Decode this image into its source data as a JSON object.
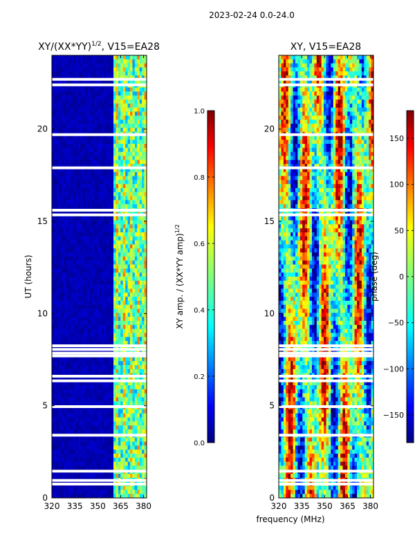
{
  "suptitle": "2023-02-24 0.0-24.0",
  "xlabel_shared": "frequency (MHz)",
  "chart_data": [
    {
      "type": "heatmap",
      "title_main": "XY/(XX*YY)",
      "title_sup": "1/2",
      "title_tail": ", V15=EA28",
      "ylabel": "UT (hours)",
      "xlim": [
        320,
        382
      ],
      "ylim": [
        0,
        24
      ],
      "xticks": [
        320,
        335,
        350,
        365,
        380
      ],
      "yticks": [
        0,
        5,
        10,
        15,
        20
      ],
      "colorbar": {
        "label_main": "XY amp. / (XX*YY amp)",
        "label_sup": "1/2",
        "range": [
          0.0,
          1.0
        ],
        "ticks": [
          "0.0",
          "0.2",
          "0.4",
          "0.6",
          "0.8",
          "1.0"
        ],
        "colormap": "jet"
      },
      "description_bands": [
        {
          "x_from": 320,
          "x_to": 360,
          "level": 0.05
        },
        {
          "x_from": 360,
          "x_to": 382,
          "level": 0.45
        }
      ]
    },
    {
      "type": "heatmap",
      "title_main": "XY, V15=EA28",
      "xlim": [
        320,
        382
      ],
      "ylim": [
        0,
        24
      ],
      "xticks": [
        320,
        335,
        350,
        365,
        380
      ],
      "yticks": [
        0,
        5,
        10,
        15,
        20
      ],
      "colorbar": {
        "label_main": "phase (deg)",
        "range": [
          -180,
          180
        ],
        "ticks": [
          "−150",
          "−100",
          "−50",
          "0",
          "50",
          "100",
          "150"
        ],
        "colormap": "jet"
      }
    }
  ],
  "flagged_gaps_hours": [
    0.75,
    0.95,
    1.45,
    3.4,
    4.95,
    6.35,
    6.6,
    7.7,
    7.85,
    8.05,
    8.25,
    15.35,
    15.6,
    17.9,
    19.7,
    22.4,
    22.7
  ]
}
